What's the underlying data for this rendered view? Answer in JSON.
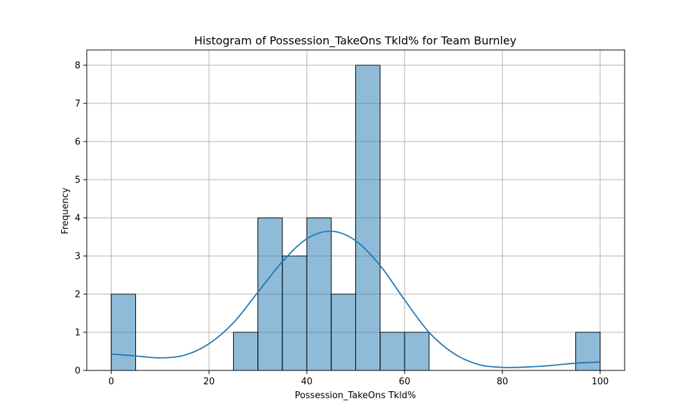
{
  "chart_data": {
    "type": "bar",
    "title": "Histogram of Possession_TakeOns Tkld% for Team Burnley",
    "xlabel": "Possession_TakeOns Tkld%",
    "ylabel": "Frequency",
    "xlim": [
      -5,
      105
    ],
    "ylim": [
      0,
      8.4
    ],
    "xticks": [
      0,
      20,
      40,
      60,
      80,
      100
    ],
    "yticks": [
      0,
      1,
      2,
      3,
      4,
      5,
      6,
      7,
      8
    ],
    "grid": true,
    "bin_width": 5,
    "bins": [
      {
        "start": 0,
        "count": 2
      },
      {
        "start": 5,
        "count": 0
      },
      {
        "start": 10,
        "count": 0
      },
      {
        "start": 15,
        "count": 0
      },
      {
        "start": 20,
        "count": 0
      },
      {
        "start": 25,
        "count": 1
      },
      {
        "start": 30,
        "count": 4
      },
      {
        "start": 35,
        "count": 3
      },
      {
        "start": 40,
        "count": 4
      },
      {
        "start": 45,
        "count": 2
      },
      {
        "start": 50,
        "count": 8
      },
      {
        "start": 55,
        "count": 1
      },
      {
        "start": 60,
        "count": 1
      },
      {
        "start": 65,
        "count": 0
      },
      {
        "start": 70,
        "count": 0
      },
      {
        "start": 75,
        "count": 0
      },
      {
        "start": 80,
        "count": 0
      },
      {
        "start": 85,
        "count": 0
      },
      {
        "start": 90,
        "count": 0
      },
      {
        "start": 95,
        "count": 1
      }
    ],
    "kde": {
      "x": [
        0,
        5,
        10,
        15,
        20,
        25,
        30,
        35,
        40,
        45,
        50,
        55,
        60,
        65,
        70,
        75,
        80,
        85,
        90,
        95,
        100
      ],
      "y": [
        0.43,
        0.38,
        0.33,
        0.4,
        0.7,
        1.25,
        2.05,
        2.85,
        3.45,
        3.65,
        3.4,
        2.75,
        1.85,
        1.0,
        0.45,
        0.16,
        0.08,
        0.09,
        0.13,
        0.19,
        0.22
      ]
    },
    "colors": {
      "bar_fill": "#1f77b4",
      "bar_fill_opacity": 0.5,
      "bar_edge": "#000000",
      "kde_line": "#1f77b4",
      "grid": "#b0b0b0"
    }
  }
}
